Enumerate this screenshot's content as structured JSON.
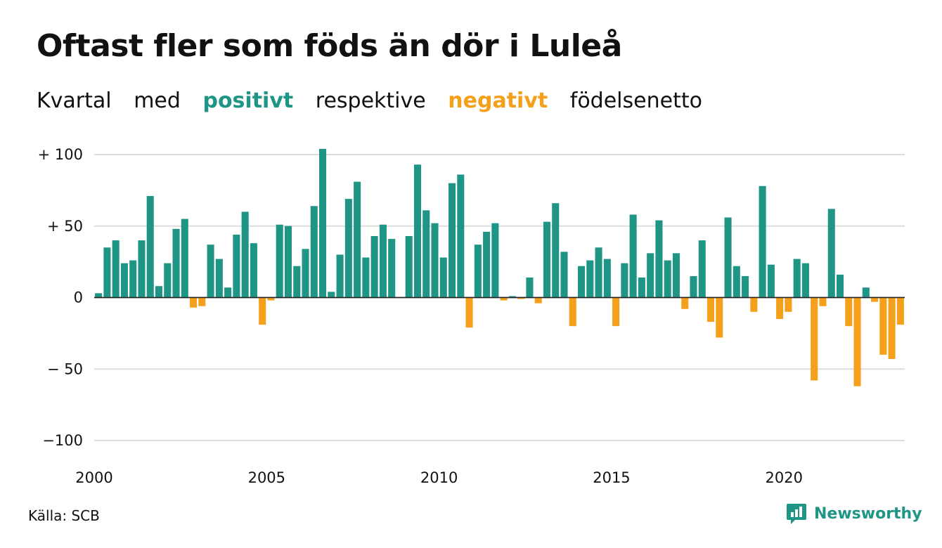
{
  "title": "Oftast fler som föds än dör i Luleå",
  "subtitle": {
    "w1": "Kvartal",
    "w2": "med",
    "w3": "positivt",
    "w4": "respektive",
    "w5": "negativt",
    "w6": "födelsenetto"
  },
  "colors": {
    "positive": "#1f9585",
    "negative": "#f5a01a",
    "grid": "#dddddd",
    "text": "#111111"
  },
  "source": "Källa: SCB",
  "logo": {
    "text": "Newsworthy",
    "icon": "bar-chart-speech-icon"
  },
  "chart_data": {
    "type": "bar",
    "xlabel": "",
    "ylabel": "",
    "x_start": "2000 Q1",
    "x_ticks": [
      "2000",
      "2005",
      "2010",
      "2015",
      "2020"
    ],
    "y_ticks": [
      {
        "value": 100,
        "label": "+ 100"
      },
      {
        "value": 50,
        "label": "+  50"
      },
      {
        "value": 0,
        "label": "0"
      },
      {
        "value": -50,
        "label": "− 50"
      },
      {
        "value": -100,
        "label": "−100"
      }
    ],
    "ylim": [
      -100,
      100
    ],
    "grid": true,
    "values": [
      3,
      35,
      40,
      24,
      26,
      40,
      71,
      8,
      24,
      48,
      55,
      -7,
      -6,
      37,
      27,
      7,
      44,
      60,
      38,
      -19,
      -2,
      51,
      50,
      22,
      34,
      64,
      104,
      4,
      30,
      69,
      81,
      28,
      43,
      51,
      41,
      0,
      43,
      93,
      61,
      52,
      28,
      80,
      86,
      -21,
      37,
      46,
      52,
      -2,
      1,
      -1,
      14,
      -4,
      53,
      66,
      32,
      -20,
      22,
      26,
      35,
      27,
      -20,
      24,
      58,
      14,
      31,
      54,
      26,
      31,
      -8,
      15,
      40,
      -17,
      -28,
      56,
      22,
      15,
      -10,
      78,
      23,
      -15,
      -10,
      27,
      24,
      -58,
      -6,
      62,
      16,
      -20,
      -62,
      7,
      -3,
      -40,
      -43,
      -19
    ]
  }
}
